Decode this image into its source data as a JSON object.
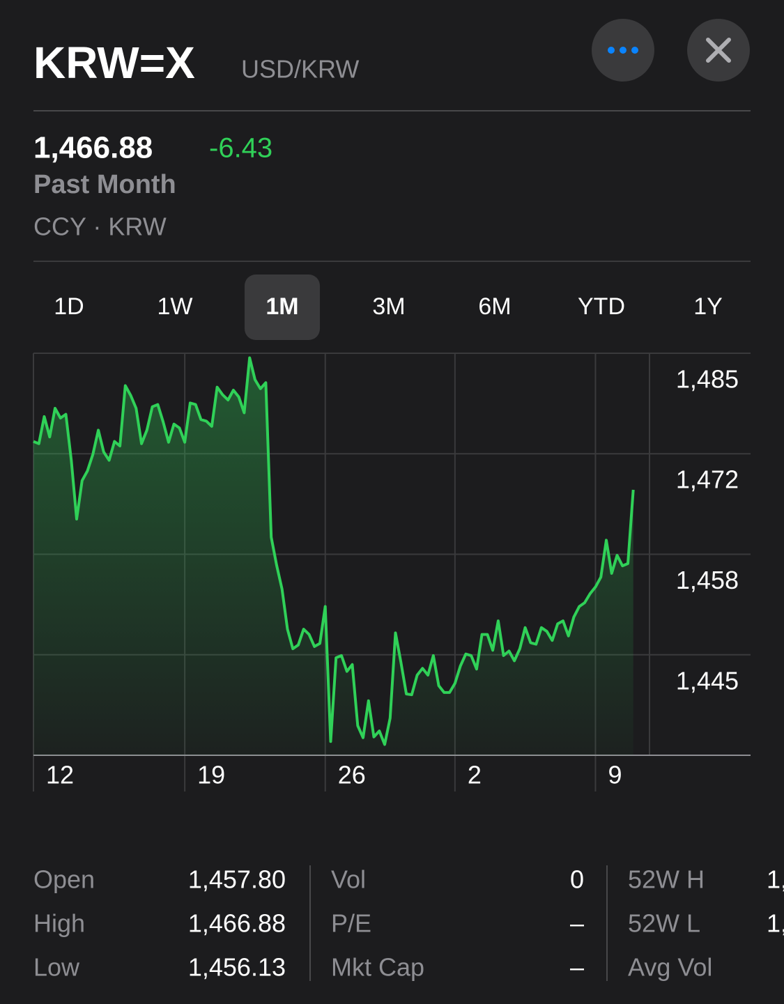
{
  "header": {
    "title": "KRW=X",
    "subtitle": "USD/KRW",
    "price": "1,466.88",
    "change": "-6.43",
    "period": "Past Month",
    "meta": "CCY · KRW"
  },
  "tabs": {
    "items": [
      "1D",
      "1W",
      "1M",
      "3M",
      "6M",
      "YTD",
      "1Y"
    ],
    "selected": 2
  },
  "chart": {
    "type": "line",
    "color": "#30d158",
    "values": [
      1473.3,
      1473.0,
      1476.6,
      1473.9,
      1477.7,
      1476.4,
      1476.9,
      1470.8,
      1463.0,
      1468.1,
      1469.4,
      1471.6,
      1474.8,
      1471.9,
      1470.8,
      1473.3,
      1472.7,
      1480.7,
      1479.4,
      1477.7,
      1473.0,
      1474.8,
      1477.9,
      1478.2,
      1475.9,
      1473.2,
      1475.6,
      1475.1,
      1473.2,
      1478.4,
      1478.2,
      1476.2,
      1476.0,
      1475.3,
      1480.5,
      1479.5,
      1478.8,
      1480.1,
      1479.2,
      1477.1,
      1484.4,
      1481.5,
      1480.3,
      1481.1,
      1460.6,
      1456.9,
      1453.7,
      1448.4,
      1445.8,
      1446.3,
      1448.4,
      1447.7,
      1446.1,
      1446.5,
      1451.4,
      1433.5,
      1444.6,
      1444.9,
      1442.8,
      1443.7,
      1435.6,
      1434.0,
      1438.9,
      1434.1,
      1434.9,
      1433.1,
      1436.6,
      1447.9,
      1444.0,
      1439.8,
      1439.7,
      1442.3,
      1443.2,
      1442.3,
      1444.9,
      1440.9,
      1440.0,
      1440.0,
      1441.2,
      1443.5,
      1445.1,
      1444.9,
      1443.1,
      1447.7,
      1447.7,
      1445.6,
      1449.5,
      1444.9,
      1445.5,
      1444.2,
      1445.8,
      1448.6,
      1446.6,
      1446.4,
      1448.6,
      1448.1,
      1446.9,
      1449.1,
      1449.5,
      1447.5,
      1450.0,
      1451.4,
      1451.9,
      1453.1,
      1454.0,
      1455.3,
      1460.2,
      1455.8,
      1458.2,
      1456.8,
      1457.1,
      1466.88
    ],
    "xlim": [
      0,
      114
    ],
    "xticks": [
      {
        "value": 0,
        "label": "12"
      },
      {
        "value": 28,
        "label": "19"
      },
      {
        "value": 54,
        "label": "26"
      },
      {
        "value": 78,
        "label": "2"
      },
      {
        "value": 104,
        "label": "9"
      }
    ],
    "ylim": [
      1431.67,
      1485
    ],
    "yticks": [
      {
        "value": 1485,
        "label": "1,485"
      },
      {
        "value": 1471.67,
        "label": "1,472"
      },
      {
        "value": 1458.33,
        "label": "1,458"
      },
      {
        "value": 1445,
        "label": "1,445"
      }
    ]
  },
  "stats": {
    "columns": [
      {
        "rows": [
          [
            "Open",
            "1,457.80"
          ],
          [
            "High",
            "1,466.88"
          ],
          [
            "Low",
            "1,456.13"
          ]
        ]
      },
      {
        "rows": [
          [
            "Vol",
            "0"
          ],
          [
            "P/E",
            "–"
          ],
          [
            "Mkt Cap",
            "–"
          ]
        ]
      },
      {
        "rows": [
          [
            "52W H",
            "1,"
          ],
          [
            "52W L",
            "1,"
          ],
          [
            "Avg Vol"
          ]
        ]
      }
    ]
  }
}
